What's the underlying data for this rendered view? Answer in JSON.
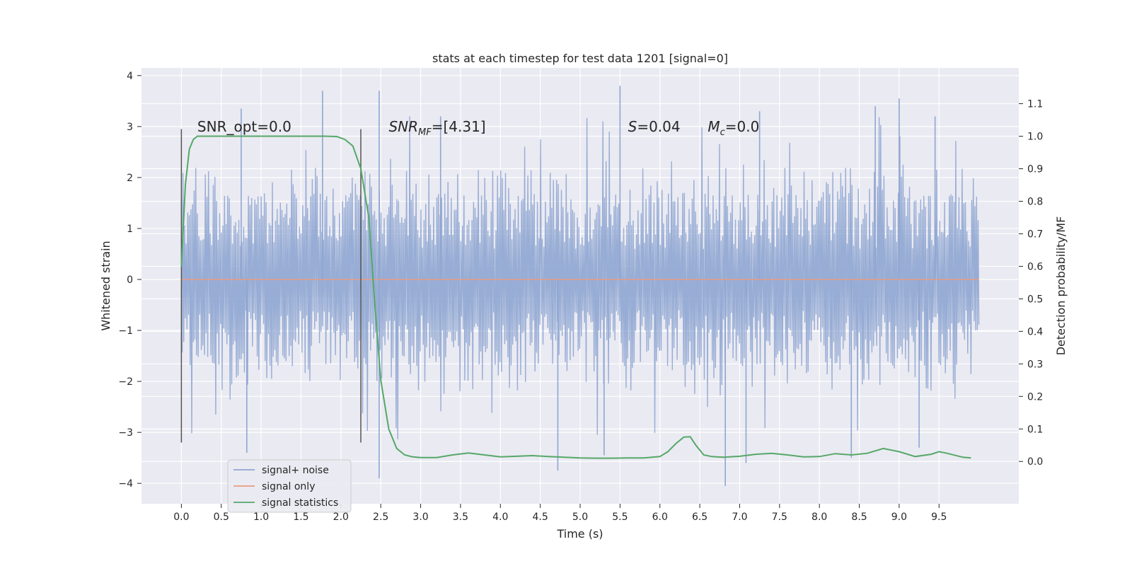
{
  "chart_data": {
    "type": "line",
    "title": "stats at each timestep for test data 1201 [signal=0]",
    "xlabel": "Time (s)",
    "ylabel": "Whitened strain",
    "y2label": "Detection probability/MF",
    "xlim": [
      -0.5,
      10.5
    ],
    "ylim": [
      -4.4,
      4.15
    ],
    "y2lim": [
      -0.13,
      1.21
    ],
    "x_ticks": [
      "0.0",
      "0.5",
      "1.0",
      "1.5",
      "2.0",
      "2.5",
      "3.0",
      "3.5",
      "4.0",
      "4.5",
      "5.0",
      "5.5",
      "6.0",
      "6.5",
      "7.0",
      "7.5",
      "8.0",
      "8.5",
      "9.0",
      "9.5"
    ],
    "y_ticks": [
      "4",
      "3",
      "2",
      "1",
      "0",
      "−1",
      "−2",
      "−3",
      "−4"
    ],
    "y2_ticks": [
      "1.1",
      "1.0",
      "0.9",
      "0.8",
      "0.7",
      "0.6",
      "0.5",
      "0.4",
      "0.3",
      "0.2",
      "0.1",
      "0.0"
    ],
    "grid": true,
    "legend_position": "lower-left",
    "annotations": [
      {
        "text": "SNR_opt=0.0",
        "x": 0.2,
        "y": 3.0
      },
      {
        "text_italic": "SNR",
        "text_sub": "MF",
        "text_rest": "=[4.31]",
        "x": 2.6,
        "y": 3.0
      },
      {
        "text_italic": "S",
        "text_rest": "=0.04",
        "x": 5.6,
        "y": 3.0
      },
      {
        "text_italic": "M",
        "text_sub": "c",
        "text_rest": "=0.0",
        "x": 6.6,
        "y": 3.0
      }
    ],
    "vertical_markers": [
      {
        "x": 0.0,
        "y_range": [
          -3.2,
          2.95
        ]
      },
      {
        "x": 2.25,
        "y_range": [
          -3.2,
          2.95
        ]
      }
    ],
    "series": [
      {
        "name": "signal+ noise",
        "color": "#8fa6d1",
        "axis": "left",
        "x_range": [
          0.0,
          10.0
        ],
        "description_points": 1000,
        "envelope": {
          "typical_upper": 1.75,
          "typical_lower": -1.8,
          "max": 3.8,
          "min": -4.05
        },
        "spikes": [
          {
            "x": 1.77,
            "y": 3.7
          },
          {
            "x": 2.48,
            "y": 3.7
          },
          {
            "x": 5.5,
            "y": 3.8
          },
          {
            "x": 9.0,
            "y": 3.55
          },
          {
            "x": 2.48,
            "y": -3.9
          },
          {
            "x": 6.82,
            "y": -4.05
          },
          {
            "x": 0.82,
            "y": -3.4
          },
          {
            "x": 4.72,
            "y": -3.75
          },
          {
            "x": 5.3,
            "y": -3.45
          },
          {
            "x": 7.08,
            "y": -3.6
          },
          {
            "x": 8.4,
            "y": -3.5
          },
          {
            "x": 9.25,
            "y": -3.3
          },
          {
            "x": 0.75,
            "y": 3.35
          },
          {
            "x": 3.25,
            "y": 3.2
          },
          {
            "x": 7.25,
            "y": 3.3
          },
          {
            "x": 8.7,
            "y": 3.4
          },
          {
            "x": 9.45,
            "y": 3.2
          }
        ]
      },
      {
        "name": "signal only",
        "color": "#e79c82",
        "axis": "left",
        "x": [
          0.0,
          10.0
        ],
        "y": [
          0.0,
          0.0
        ]
      },
      {
        "name": "signal statistics",
        "color": "#55a868",
        "axis": "right",
        "x": [
          0.0,
          0.05,
          0.1,
          0.15,
          0.2,
          0.3,
          0.5,
          1.0,
          1.5,
          1.8,
          1.95,
          2.05,
          2.15,
          2.25,
          2.35,
          2.42,
          2.5,
          2.6,
          2.7,
          2.8,
          2.9,
          3.0,
          3.2,
          3.4,
          3.6,
          3.8,
          4.0,
          4.2,
          4.4,
          4.6,
          4.8,
          5.0,
          5.2,
          5.4,
          5.6,
          5.8,
          6.0,
          6.1,
          6.2,
          6.3,
          6.38,
          6.45,
          6.55,
          6.65,
          6.8,
          7.0,
          7.2,
          7.4,
          7.6,
          7.8,
          8.0,
          8.2,
          8.4,
          8.6,
          8.8,
          9.0,
          9.2,
          9.4,
          9.5,
          9.6,
          9.8,
          9.9
        ],
        "y": [
          0.6,
          0.85,
          0.96,
          0.99,
          1.0,
          1.0,
          1.0,
          1.0,
          1.0,
          1.0,
          0.999,
          0.99,
          0.97,
          0.9,
          0.75,
          0.5,
          0.25,
          0.1,
          0.04,
          0.02,
          0.014,
          0.012,
          0.012,
          0.02,
          0.026,
          0.02,
          0.014,
          0.016,
          0.018,
          0.015,
          0.013,
          0.011,
          0.01,
          0.01,
          0.011,
          0.011,
          0.015,
          0.03,
          0.055,
          0.075,
          0.076,
          0.05,
          0.02,
          0.015,
          0.013,
          0.016,
          0.022,
          0.025,
          0.02,
          0.014,
          0.015,
          0.024,
          0.02,
          0.025,
          0.04,
          0.03,
          0.015,
          0.022,
          0.03,
          0.025,
          0.013,
          0.011
        ]
      }
    ]
  }
}
